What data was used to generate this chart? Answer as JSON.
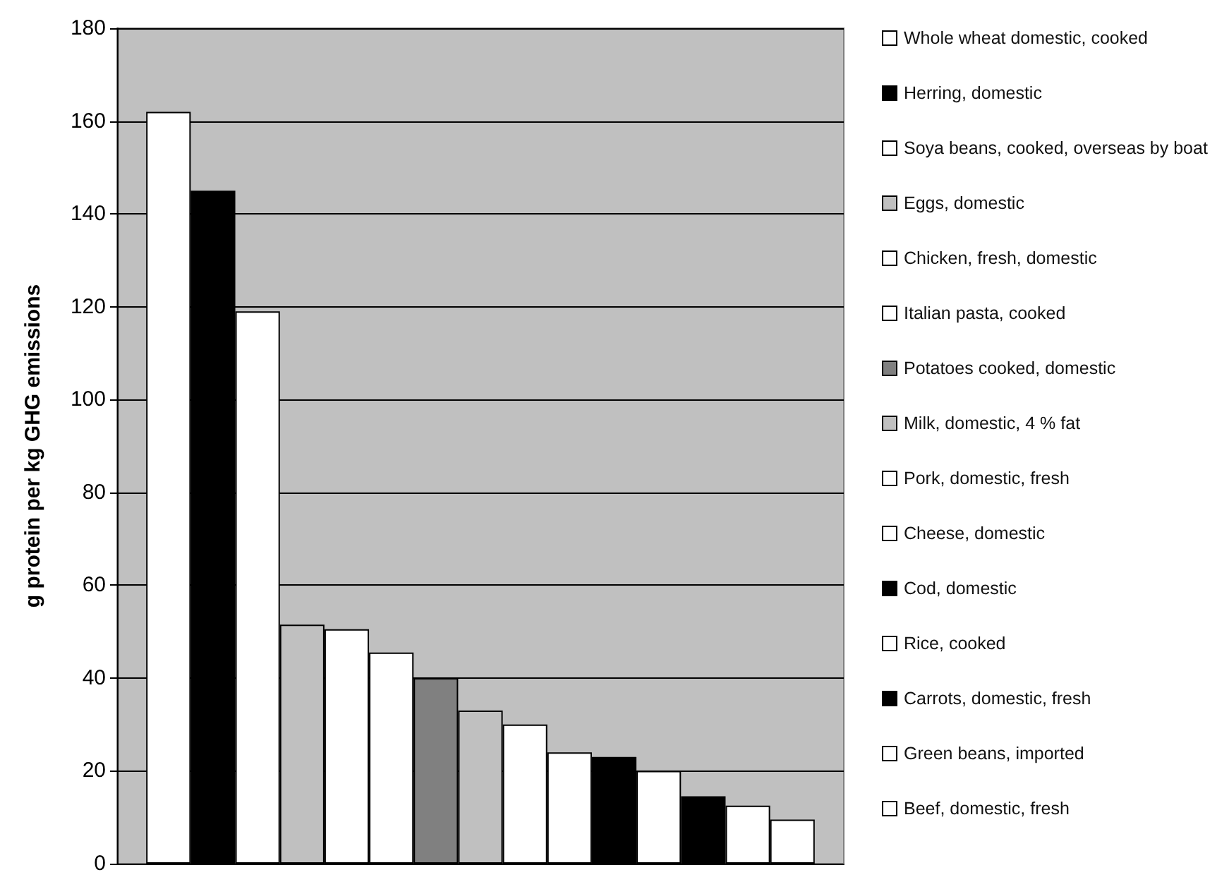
{
  "chart_data": {
    "type": "bar",
    "ylabel": "g protein per kg GHG emissions",
    "categories": [
      null
    ],
    "ylim": [
      0,
      180
    ],
    "yticks": [
      0,
      20,
      40,
      60,
      80,
      100,
      120,
      140,
      160,
      180
    ],
    "grid": "y",
    "legend": "right",
    "series": [
      {
        "name": "Whole wheat domestic, cooked",
        "color": "#ffffff",
        "values": [
          162
        ]
      },
      {
        "name": "Herring, domestic",
        "color": "#000000",
        "values": [
          145
        ]
      },
      {
        "name": "Soya beans, cooked, overseas by boat",
        "color": "#ffffff",
        "values": [
          119
        ]
      },
      {
        "name": "Eggs, domestic",
        "color": "#c0c0c0",
        "values": [
          51.5
        ]
      },
      {
        "name": "Chicken, fresh, domestic",
        "color": "#ffffff",
        "values": [
          50.5
        ]
      },
      {
        "name": "Italian pasta, cooked",
        "color": "#ffffff",
        "values": [
          45.5
        ]
      },
      {
        "name": "Potatoes cooked, domestic",
        "color": "#808080",
        "values": [
          40
        ]
      },
      {
        "name": "Milk, domestic, 4 % fat",
        "color": "#c0c0c0",
        "values": [
          33
        ]
      },
      {
        "name": "Pork, domestic, fresh",
        "color": "#ffffff",
        "values": [
          30
        ]
      },
      {
        "name": "Cheese, domestic",
        "color": "#ffffff",
        "values": [
          24
        ]
      },
      {
        "name": "Cod, domestic",
        "color": "#000000",
        "values": [
          23
        ]
      },
      {
        "name": "Rice, cooked",
        "color": "#ffffff",
        "values": [
          20
        ]
      },
      {
        "name": "Carrots, domestic, fresh",
        "color": "#000000",
        "values": [
          14.5
        ]
      },
      {
        "name": "Green beans, imported",
        "color": "#ffffff",
        "values": [
          12.5
        ]
      },
      {
        "name": "Beef, domestic, fresh",
        "color": "#ffffff",
        "values": [
          9.5
        ]
      }
    ]
  }
}
